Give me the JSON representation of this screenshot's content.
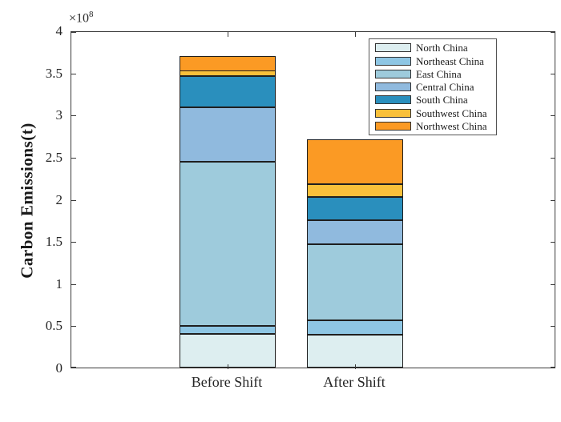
{
  "figure": {
    "ylabel": "Carbon Emissions(t)",
    "exponent_base": "×10",
    "exponent_power": "8"
  },
  "chart_data": {
    "type": "bar",
    "subtype": "stacked",
    "title": "",
    "xlabel": "",
    "ylabel": "Carbon Emissions(t)",
    "value_unit": "t",
    "scale_factor": 100000000,
    "exponent_label": "×10^8",
    "categories": [
      "Before Shift",
      "After Shift"
    ],
    "series": [
      {
        "name": "North China",
        "color": "#ddeef0",
        "values": [
          0.4,
          0.39
        ]
      },
      {
        "name": "Northeast China",
        "color": "#8ec6e4",
        "values": [
          0.095,
          0.175
        ]
      },
      {
        "name": "East China",
        "color": "#9ecbdc",
        "values": [
          1.945,
          0.9
        ]
      },
      {
        "name": "Central China",
        "color": "#90bade",
        "values": [
          0.645,
          0.285
        ]
      },
      {
        "name": "South China",
        "color": "#2a8fbd",
        "values": [
          0.37,
          0.275
        ]
      },
      {
        "name": "Southwest China",
        "color": "#f9c03a",
        "values": [
          0.065,
          0.155
        ]
      },
      {
        "name": "Northwest China",
        "color": "#fb9a24",
        "values": [
          0.185,
          0.535
        ]
      }
    ],
    "stack_totals": [
      3.705,
      2.715
    ],
    "ylim": [
      0,
      4
    ],
    "yticks": [
      0,
      0.5,
      1,
      1.5,
      2,
      2.5,
      3,
      3.5,
      4
    ],
    "ytick_labels": [
      "0",
      "0.5",
      "1",
      "1.5",
      "2",
      "2.5",
      "3",
      "3.5",
      "4"
    ],
    "grid": false,
    "legend_position": "upper-right-inside",
    "legend_entries": [
      "North China",
      "Northeast China",
      "East China",
      "Central China",
      "South China",
      "Southwest China",
      "Northwest China"
    ],
    "axis_color": "#3a3a3a",
    "bar_border_color": "#1f1f1f"
  }
}
